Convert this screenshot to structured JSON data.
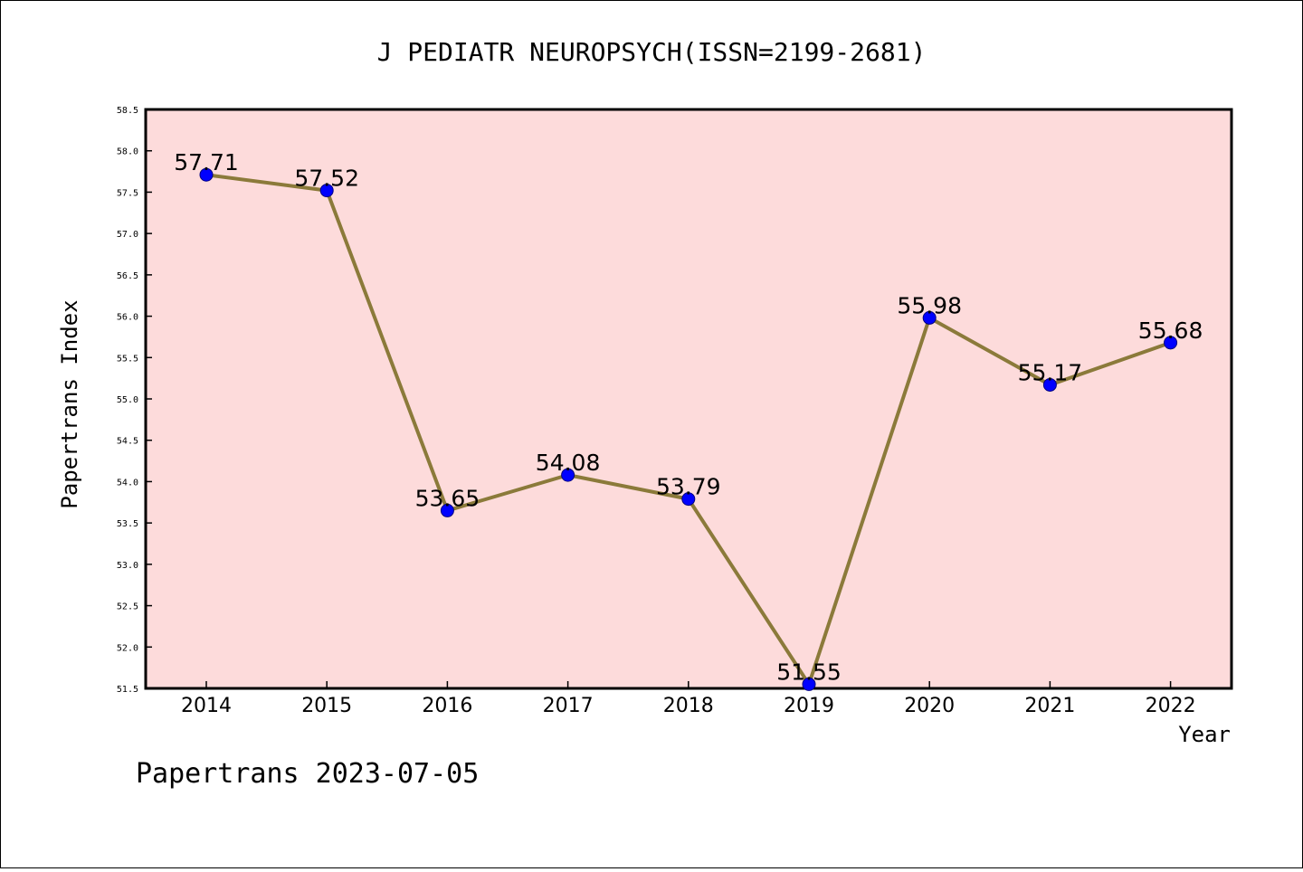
{
  "chart_data": {
    "type": "line",
    "title": "J PEDIATR NEUROPSYCH(ISSN=2199-2681)",
    "xlabel": "Year",
    "ylabel": "Papertrans Index",
    "categories": [
      "2014",
      "2015",
      "2016",
      "2017",
      "2018",
      "2019",
      "2020",
      "2021",
      "2022"
    ],
    "values": [
      57.71,
      57.52,
      53.65,
      54.08,
      53.79,
      51.55,
      55.98,
      55.17,
      55.68
    ],
    "data_labels": [
      "57.71",
      "57.52",
      "53.65",
      "54.08",
      "53.79",
      "51.55",
      "55.98",
      "55.17",
      "55.68"
    ],
    "ylim": [
      51.5,
      58.5
    ],
    "yticks": [
      "51.5",
      "52.0",
      "52.5",
      "53.0",
      "53.5",
      "54.0",
      "54.5",
      "55.0",
      "55.5",
      "56.0",
      "56.5",
      "57.0",
      "57.5",
      "58.0",
      "58.5"
    ],
    "grid": false,
    "footer": "Papertrans 2023-07-05",
    "colors": {
      "plot_background": "#fddbdb",
      "line": "#8b7a3a",
      "marker": "#0000ff",
      "axis": "#000000"
    }
  }
}
